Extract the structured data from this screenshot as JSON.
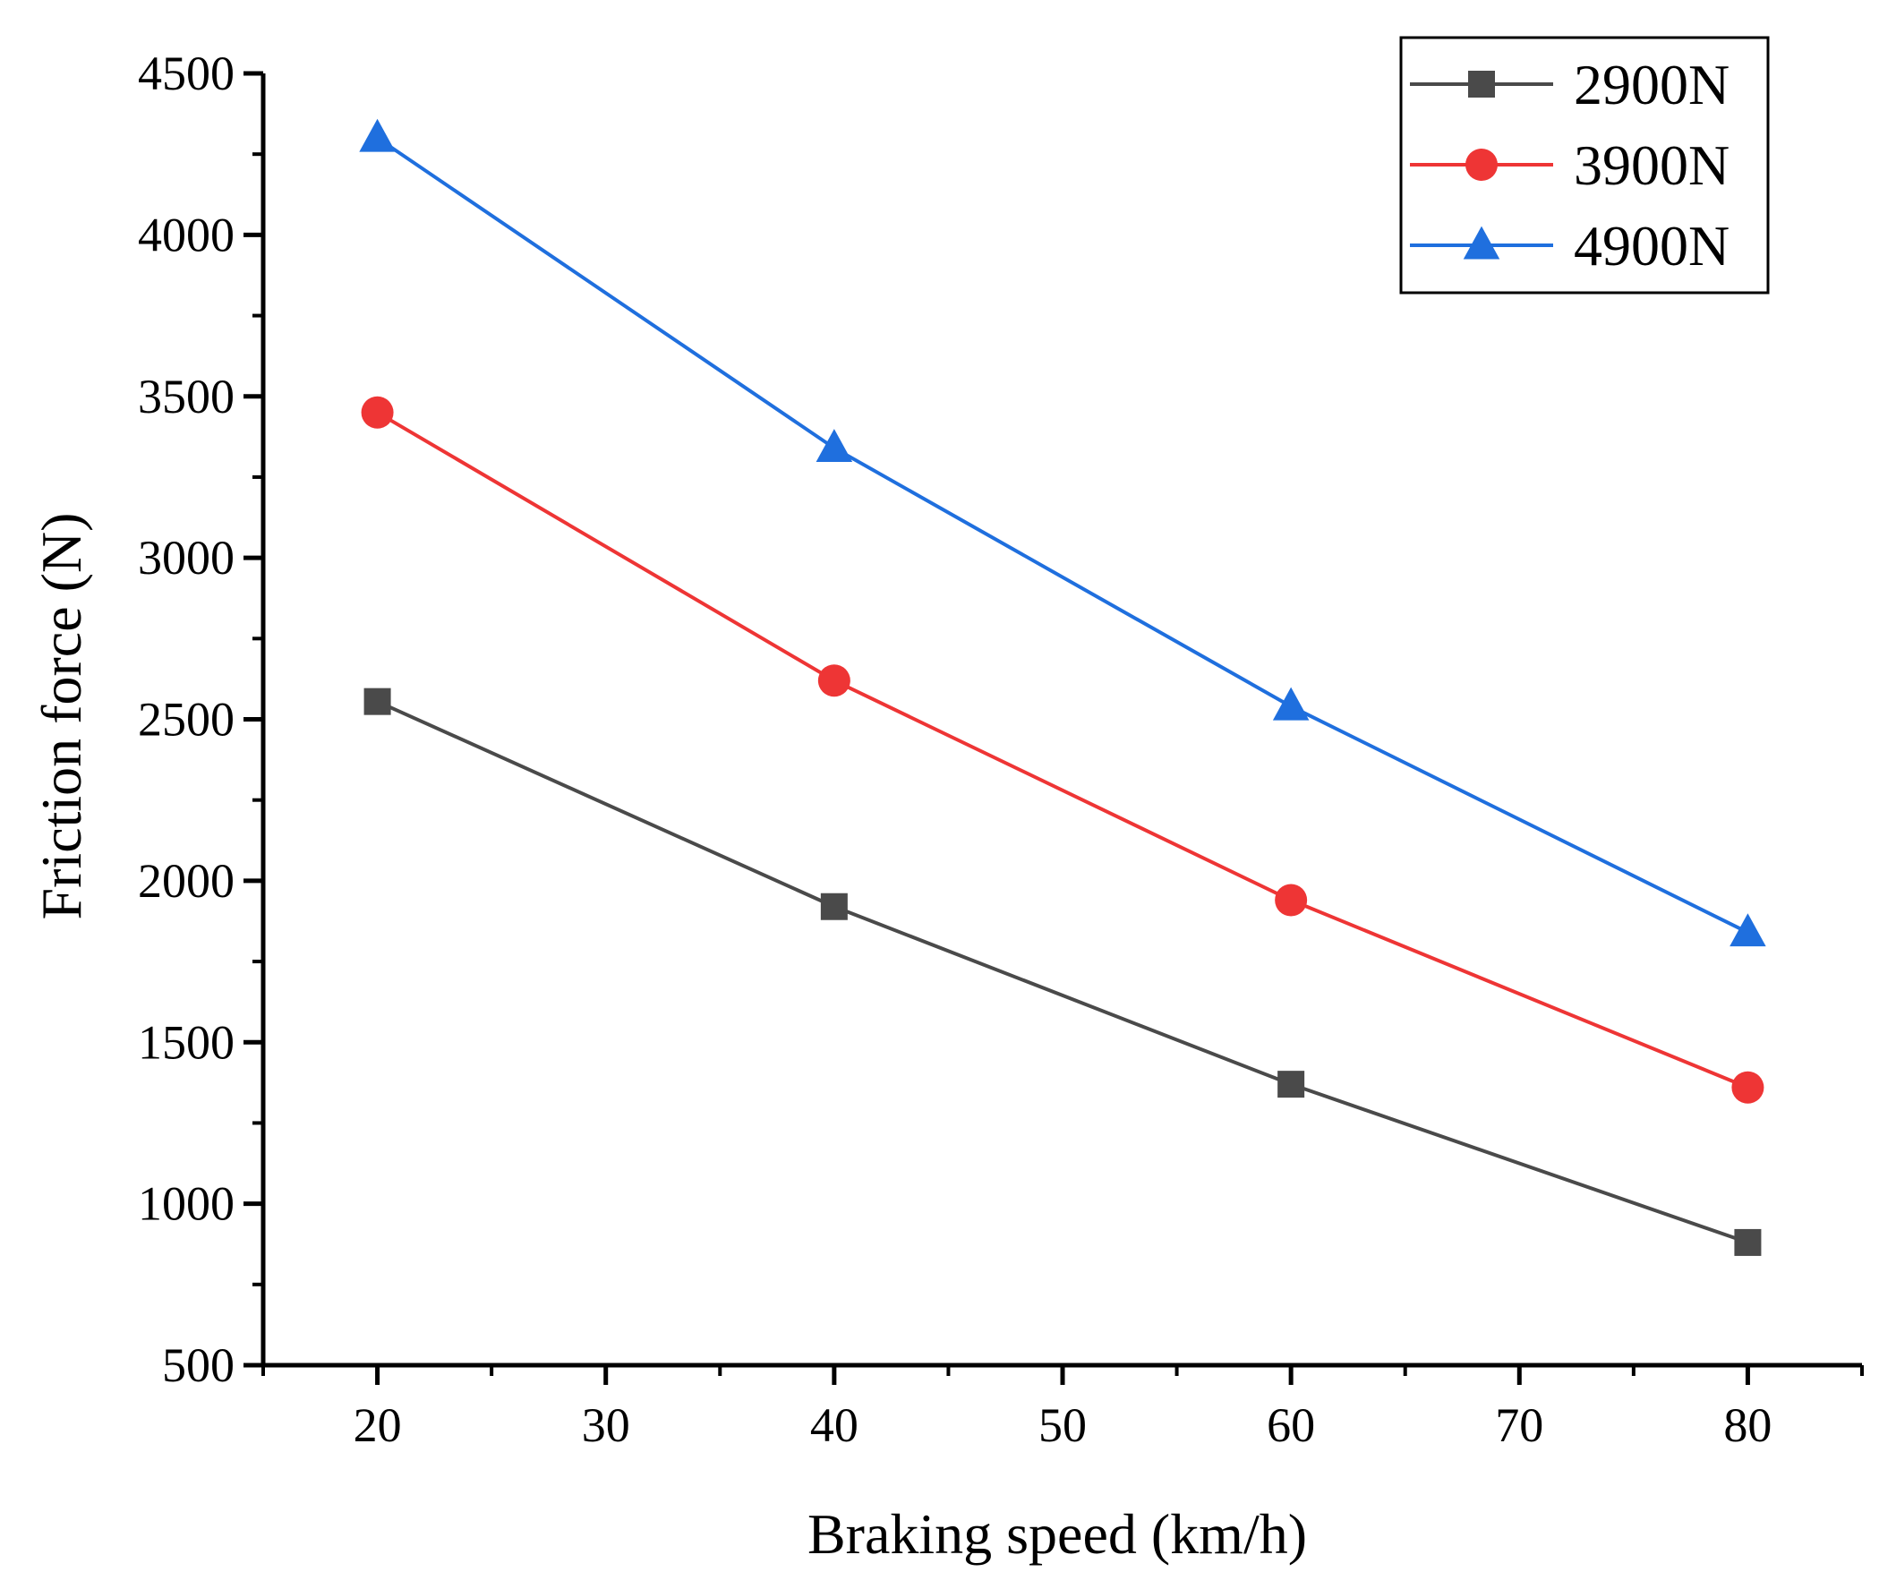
{
  "chart_data": {
    "type": "line",
    "title": "",
    "xlabel": "Braking speed (km/h)",
    "ylabel": "Friction force (N)",
    "xlim": [
      15,
      85
    ],
    "ylim": [
      500,
      4500
    ],
    "xticks": [
      20,
      30,
      40,
      50,
      60,
      70,
      80
    ],
    "yticks": [
      500,
      1000,
      1500,
      2000,
      2500,
      3000,
      3500,
      4000,
      4500
    ],
    "grid": false,
    "legend_position": "top-right",
    "series": [
      {
        "name": "2900N",
        "color": "#4a4a4a",
        "marker": "square",
        "x": [
          20,
          40,
          60,
          80
        ],
        "values": [
          2555,
          1920,
          1370,
          880
        ]
      },
      {
        "name": "3900N",
        "color": "#ee3535",
        "marker": "circle",
        "x": [
          20,
          40,
          60,
          80
        ],
        "values": [
          3450,
          2620,
          1940,
          1360
        ]
      },
      {
        "name": "4900N",
        "color": "#1f6fde",
        "marker": "triangle",
        "x": [
          20,
          40,
          60,
          80
        ],
        "values": [
          4300,
          3340,
          2540,
          1840
        ]
      }
    ]
  }
}
